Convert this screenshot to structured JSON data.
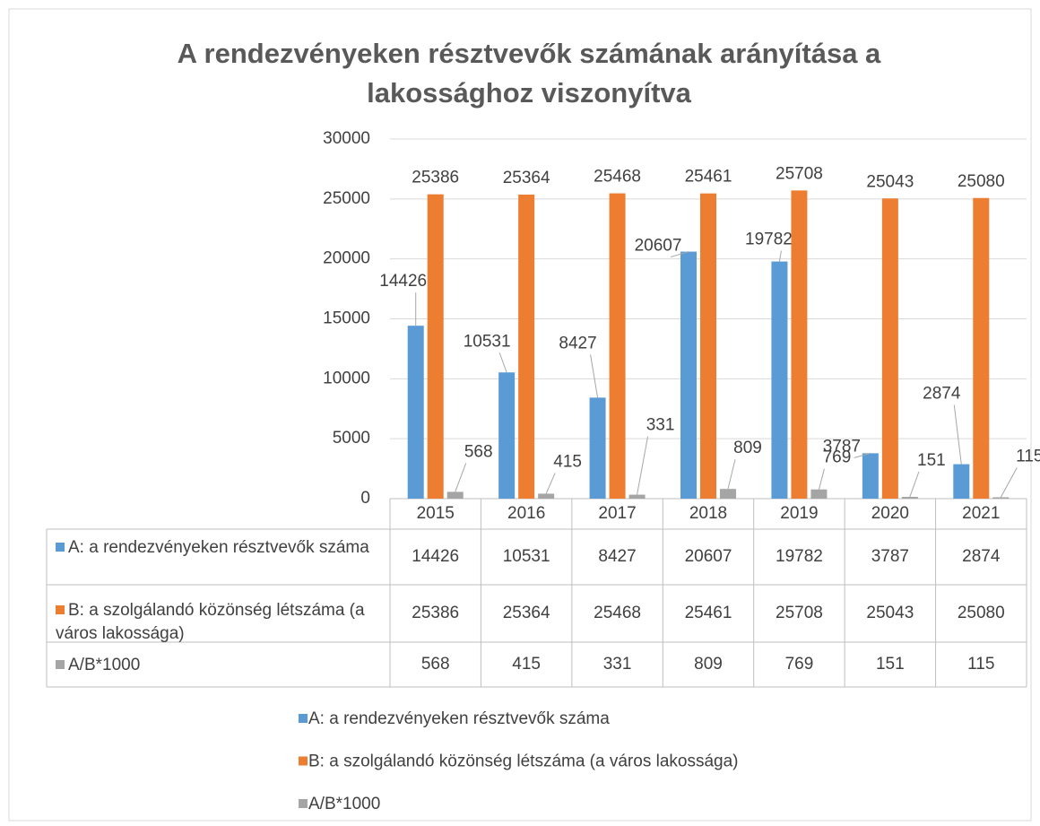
{
  "chart_data": {
    "type": "bar",
    "title": "A rendezvényeken résztvevők számának arányítása a lakossághoz viszonyítva",
    "categories": [
      "2015",
      "2016",
      "2017",
      "2018",
      "2019",
      "2020",
      "2021"
    ],
    "series": [
      {
        "name": "A: a rendezvényeken résztvevők száma",
        "color": "#5b9bd5",
        "values": [
          14426,
          10531,
          8427,
          20607,
          19782,
          3787,
          2874
        ]
      },
      {
        "name": "B: a szolgálandó közönség létszáma (a város lakossága)",
        "color": "#ed7d31",
        "values": [
          25386,
          25364,
          25468,
          25461,
          25708,
          25043,
          25080
        ]
      },
      {
        "name": "A/B*1000",
        "color": "#a5a5a5",
        "values": [
          568,
          415,
          331,
          809,
          769,
          151,
          115
        ]
      }
    ],
    "ylim": [
      0,
      30000
    ],
    "yticks": [
      0,
      5000,
      10000,
      15000,
      20000,
      25000,
      30000
    ],
    "grid": true,
    "legend": "bottom"
  }
}
